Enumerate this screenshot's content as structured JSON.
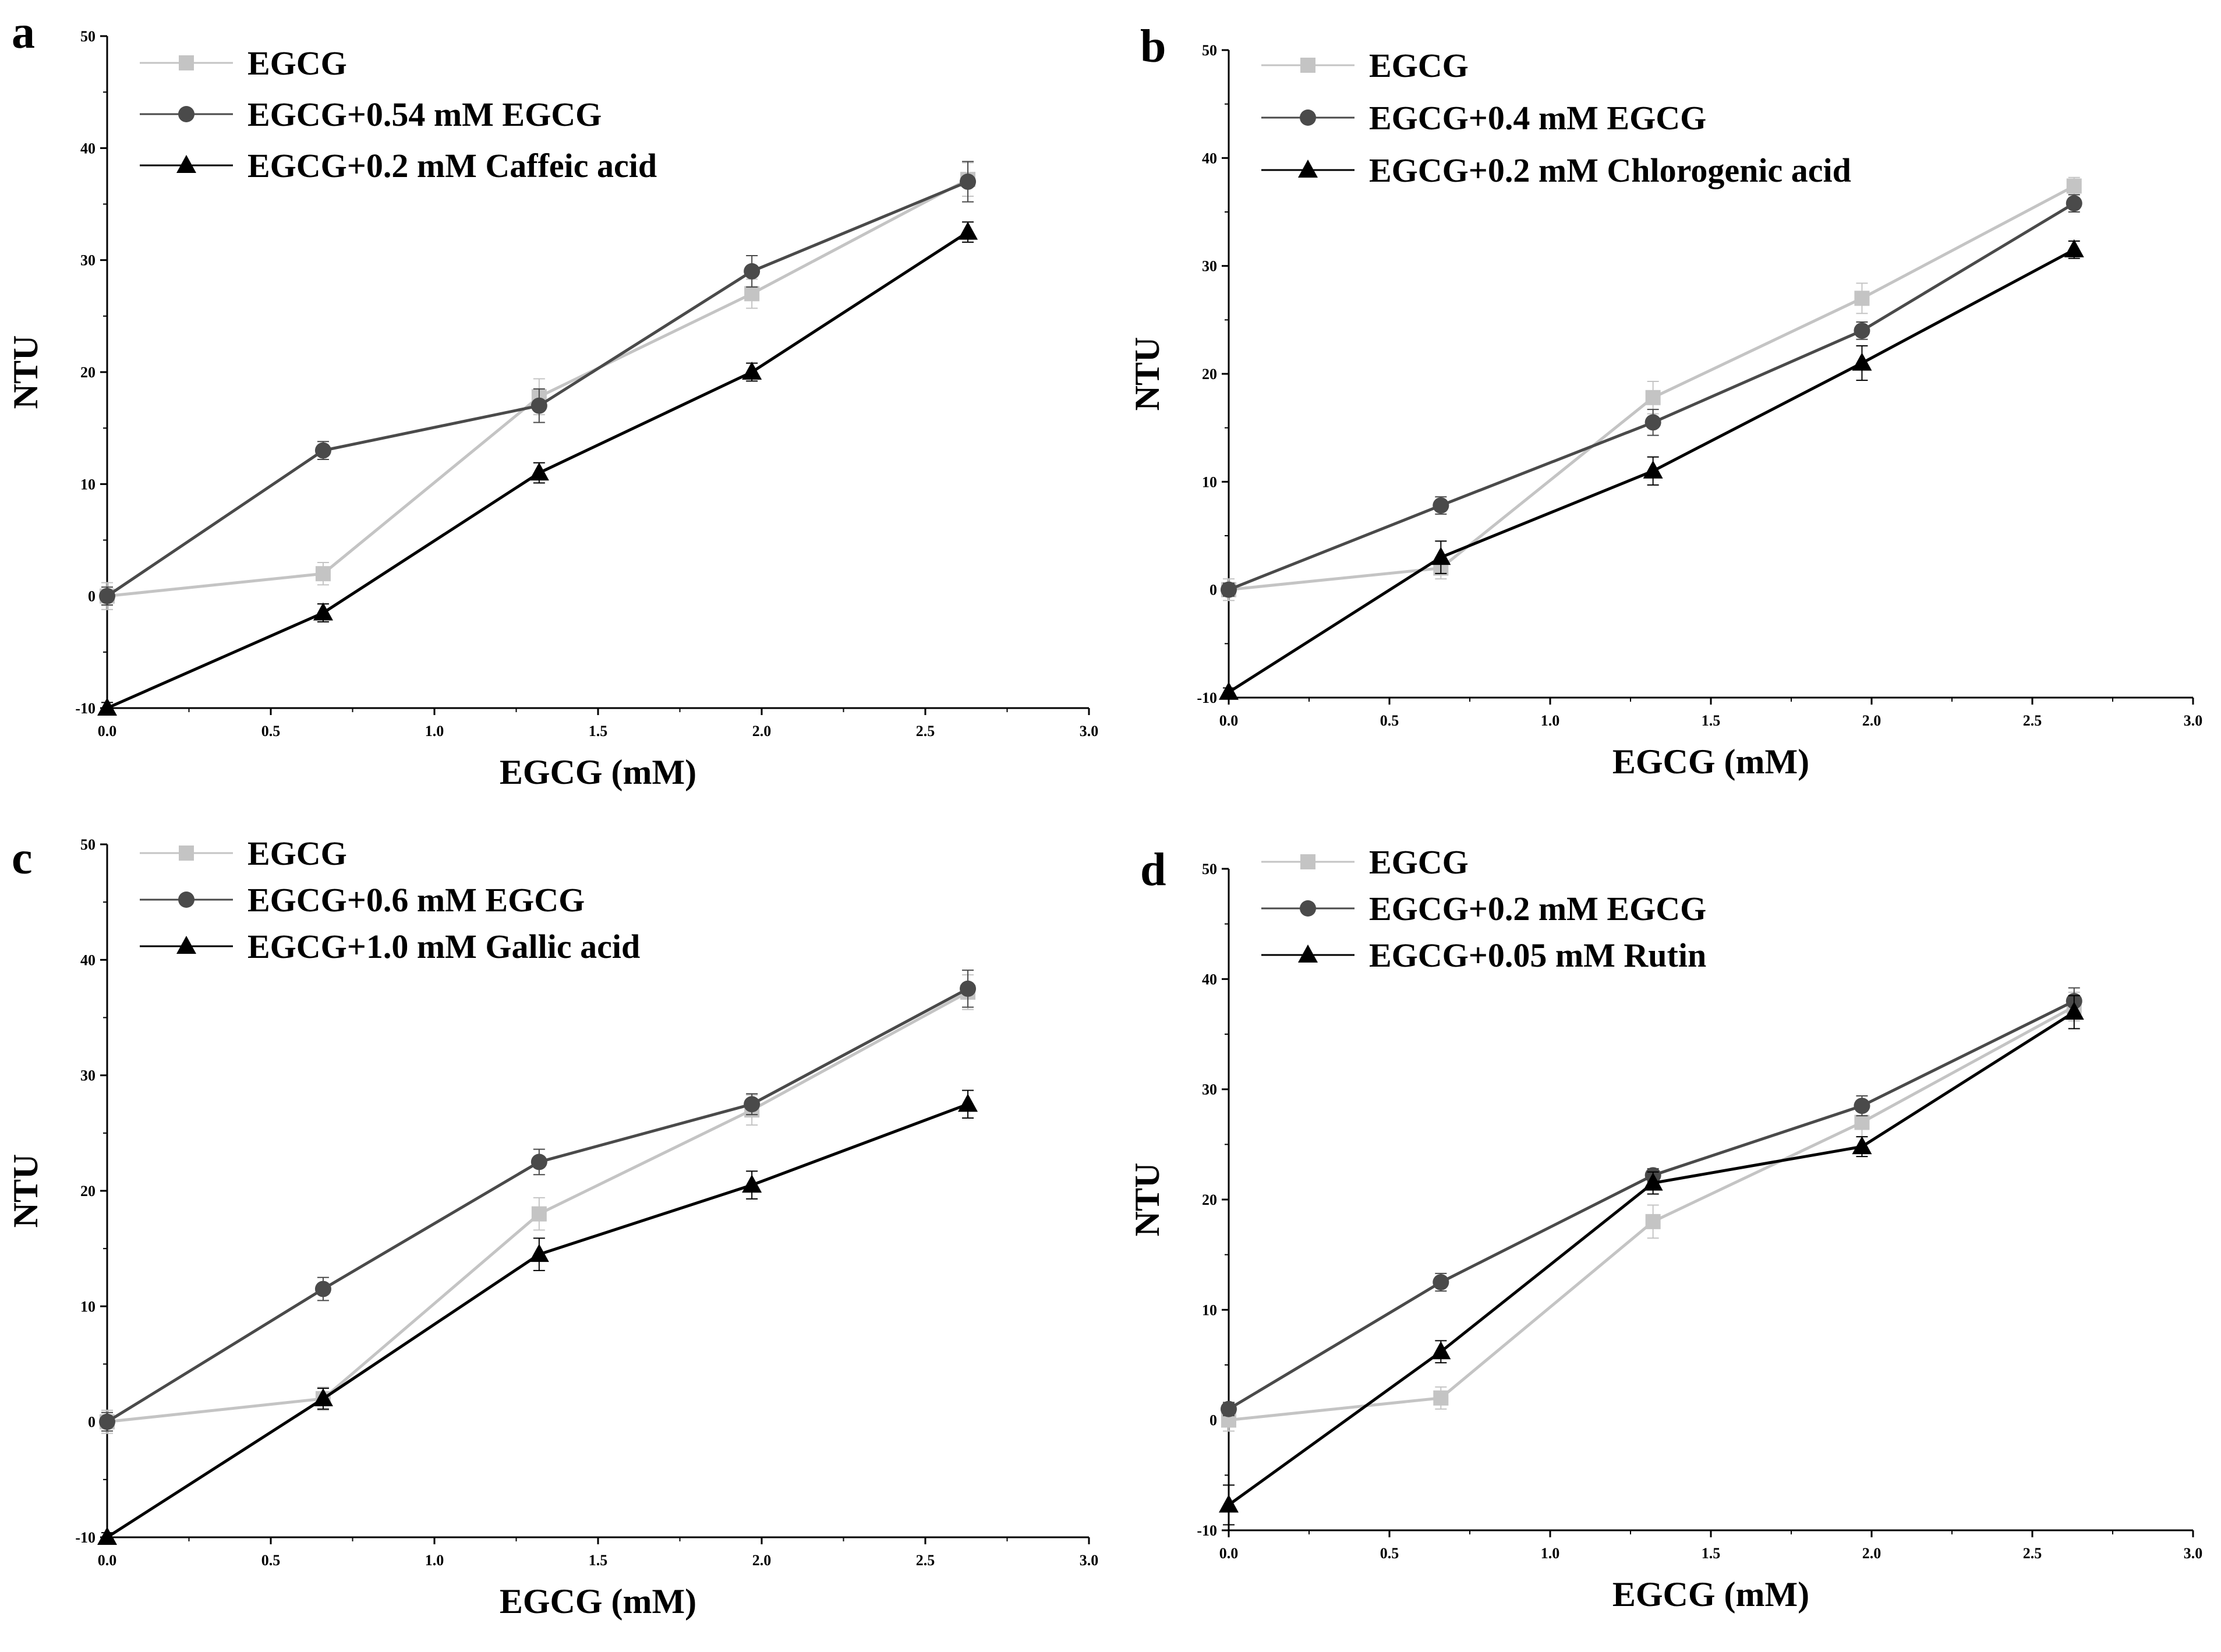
{
  "colors": {
    "EGCG": "#c4c4c4",
    "EGCG_plus": "#4a4a4a",
    "acid": "#000000",
    "axis": "#000000"
  },
  "chart_data": [
    {
      "panel": "a",
      "type": "line",
      "xlabel": "EGCG (mM)",
      "ylabel": "NTU",
      "xlim": [
        0,
        3.0
      ],
      "ylim": [
        -10,
        50
      ],
      "xticks": [
        "0.0",
        "0.5",
        "1.0",
        "1.5",
        "2.0",
        "2.5",
        "3.0"
      ],
      "yticks": [
        "-10",
        "0",
        "10",
        "20",
        "30",
        "40",
        "50"
      ],
      "x": [
        0,
        0.66,
        1.32,
        1.97,
        2.63
      ],
      "series": [
        {
          "name": "EGCG",
          "marker": "square",
          "color": "#c4c4c4",
          "values": [
            0,
            2,
            17.8,
            27,
            37.2
          ],
          "errors": [
            1.2,
            1.0,
            1.6,
            1.3,
            1.5
          ]
        },
        {
          "name": "EGCG+0.54 mM EGCG",
          "marker": "circle",
          "color": "#4a4a4a",
          "values": [
            0,
            13,
            17,
            29,
            37
          ],
          "errors": [
            0.8,
            0.8,
            1.5,
            1.4,
            1.8
          ]
        },
        {
          "name": "EGCG+0.2 mM Caffeic acid",
          "marker": "triangle",
          "color": "#000000",
          "values": [
            -10,
            -1.5,
            11,
            20,
            32.5
          ],
          "errors": [
            0.5,
            0.8,
            0.9,
            0.8,
            0.9
          ]
        }
      ]
    },
    {
      "panel": "b",
      "type": "line",
      "xlabel": "EGCG (mM)",
      "ylabel": "NTU",
      "xlim": [
        0,
        3.0
      ],
      "ylim": [
        -10,
        50
      ],
      "xticks": [
        "0.0",
        "0.5",
        "1.0",
        "1.5",
        "2.0",
        "2.5",
        "3.0"
      ],
      "yticks": [
        "-10",
        "0",
        "10",
        "20",
        "30",
        "40",
        "50"
      ],
      "x": [
        0,
        0.66,
        1.32,
        1.97,
        2.63
      ],
      "series": [
        {
          "name": "EGCG",
          "marker": "square",
          "color": "#c4c4c4",
          "values": [
            0,
            2,
            17.8,
            27,
            37.4
          ],
          "errors": [
            1.0,
            1.0,
            1.5,
            1.4,
            0.8
          ]
        },
        {
          "name": "EGCG+0.4 mM EGCG",
          "marker": "circle",
          "color": "#4a4a4a",
          "values": [
            0,
            7.8,
            15.5,
            24,
            35.8
          ],
          "errors": [
            0.6,
            0.8,
            1.2,
            0.8,
            0.8
          ]
        },
        {
          "name": "EGCG+0.2 mM Chlorogenic acid",
          "marker": "triangle",
          "color": "#000000",
          "values": [
            -9.5,
            3,
            11,
            21,
            31.5
          ],
          "errors": [
            0.4,
            1.5,
            1.3,
            1.6,
            0.8
          ]
        }
      ]
    },
    {
      "panel": "c",
      "type": "line",
      "xlabel": "EGCG (mM)",
      "ylabel": "NTU",
      "xlim": [
        0,
        3.0
      ],
      "ylim": [
        -10,
        50
      ],
      "xticks": [
        "0.0",
        "0.5",
        "1.0",
        "1.5",
        "2.0",
        "2.5",
        "3.0"
      ],
      "yticks": [
        "-10",
        "0",
        "10",
        "20",
        "30",
        "40",
        "50"
      ],
      "x": [
        0,
        0.66,
        1.32,
        1.97,
        2.63
      ],
      "series": [
        {
          "name": "EGCG",
          "marker": "square",
          "color": "#c4c4c4",
          "values": [
            0,
            2,
            18,
            27,
            37.2
          ],
          "errors": [
            1.0,
            1.0,
            1.4,
            1.3,
            1.5
          ]
        },
        {
          "name": "EGCG+0.6 mM EGCG",
          "marker": "circle",
          "color": "#4a4a4a",
          "values": [
            0,
            11.5,
            22.5,
            27.5,
            37.5
          ],
          "errors": [
            0.8,
            1.0,
            1.1,
            0.9,
            1.6
          ]
        },
        {
          "name": "EGCG+1.0 mM Gallic acid",
          "marker": "triangle",
          "color": "#000000",
          "values": [
            -10,
            2,
            14.5,
            20.5,
            27.5
          ],
          "errors": [
            0.4,
            0.9,
            1.4,
            1.2,
            1.2
          ]
        }
      ]
    },
    {
      "panel": "d",
      "type": "line",
      "xlabel": "EGCG (mM)",
      "ylabel": "NTU",
      "xlim": [
        0,
        3.0
      ],
      "ylim": [
        -10,
        50
      ],
      "xticks": [
        "0.0",
        "0.5",
        "1.0",
        "1.5",
        "2.0",
        "2.5",
        "3.0"
      ],
      "yticks": [
        "-10",
        "0",
        "10",
        "20",
        "30",
        "40",
        "50"
      ],
      "x": [
        0,
        0.66,
        1.32,
        1.97,
        2.63
      ],
      "series": [
        {
          "name": "EGCG",
          "marker": "square",
          "color": "#c4c4c4",
          "values": [
            0,
            2,
            18,
            27,
            37.5
          ],
          "errors": [
            1.0,
            1.0,
            1.5,
            1.3,
            1.3
          ]
        },
        {
          "name": "EGCG+0.2 mM EGCG",
          "marker": "circle",
          "color": "#4a4a4a",
          "values": [
            1,
            12.5,
            22.2,
            28.5,
            38
          ],
          "errors": [
            0.6,
            0.8,
            0.6,
            0.9,
            1.2
          ]
        },
        {
          "name": "EGCG+0.05 mM Rutin",
          "marker": "triangle",
          "color": "#000000",
          "values": [
            -7.7,
            6.2,
            21.5,
            24.8,
            37
          ],
          "errors": [
            1.8,
            1.0,
            1.0,
            0.9,
            1.5
          ]
        }
      ]
    }
  ]
}
